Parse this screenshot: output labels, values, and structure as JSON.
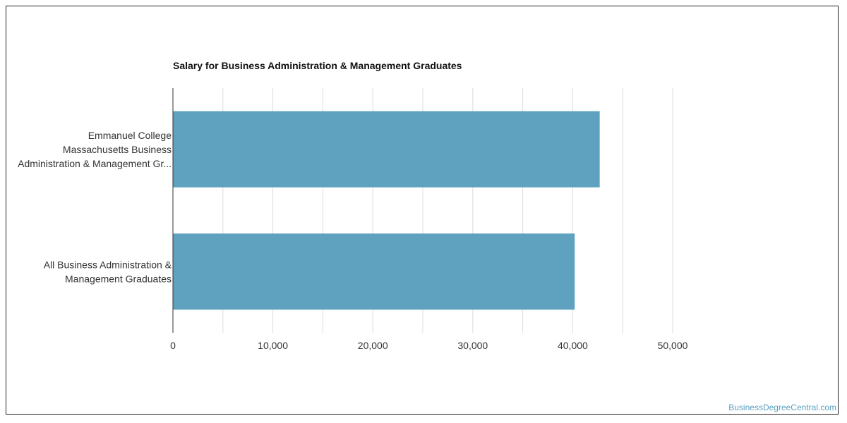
{
  "chart_data": {
    "type": "bar",
    "orientation": "horizontal",
    "title": "Salary for Business Administration & Management Graduates",
    "categories": [
      [
        "Emmanuel College",
        "Massachusetts Business",
        "Administration & Management Gr..."
      ],
      [
        "All Business Administration &",
        "Management Graduates"
      ]
    ],
    "values": [
      42700,
      40200
    ],
    "xlim": [
      0,
      50000
    ],
    "xticks": [
      "0",
      "10,000",
      "20,000",
      "30,000",
      "40,000",
      "50,000"
    ],
    "grid": true,
    "bar_color": "#5ea2bf"
  },
  "credit": "BusinessDegreeCentral.com"
}
